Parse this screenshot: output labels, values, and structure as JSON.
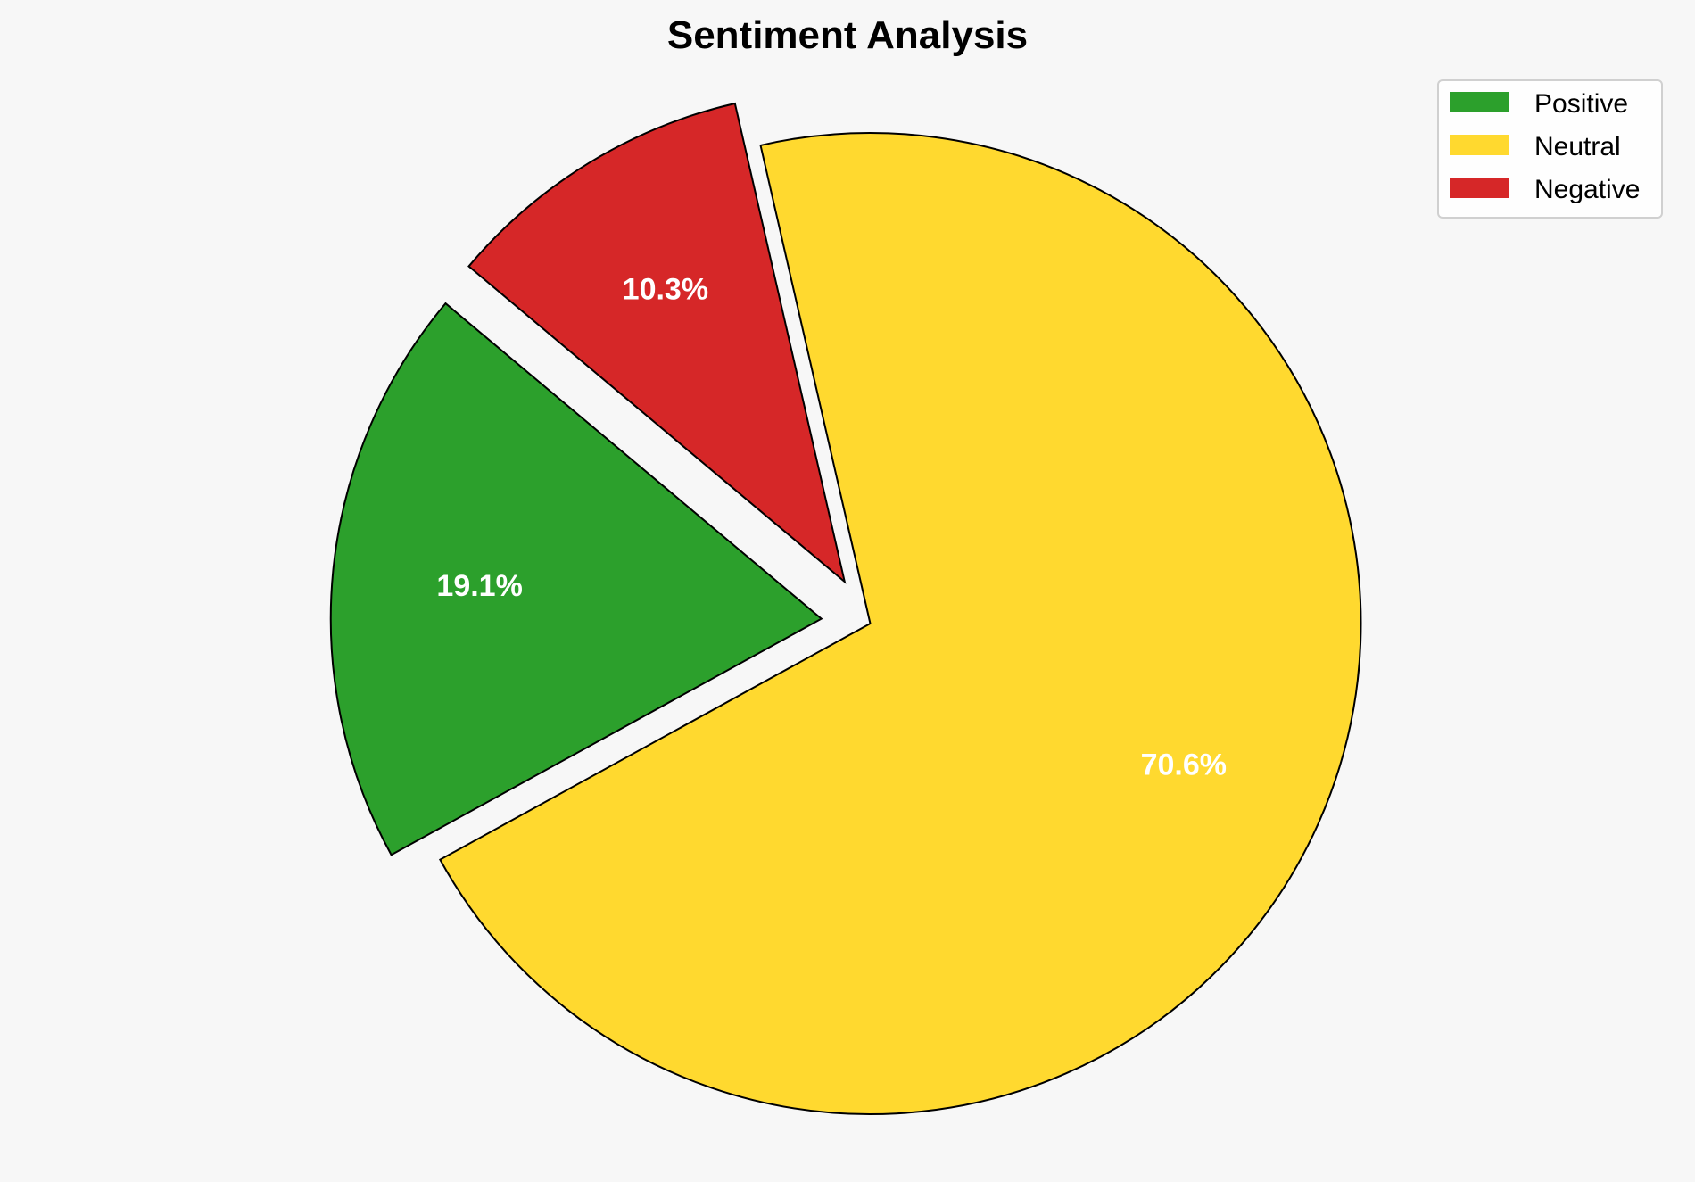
{
  "chart_data": {
    "type": "pie",
    "title": "Sentiment Analysis",
    "categories": [
      "Positive",
      "Neutral",
      "Negative"
    ],
    "values": [
      19.1,
      70.6,
      10.3
    ],
    "labels": [
      "19.1%",
      "70.6%",
      "10.3%"
    ],
    "colors": [
      "#2ca02c",
      "#ffd92f",
      "#d62728"
    ],
    "explode": [
      0.1,
      0,
      0.1
    ],
    "start_angle": 140,
    "counterclockwise": true,
    "legend_position": "top-right",
    "edge_color": "#000000"
  }
}
